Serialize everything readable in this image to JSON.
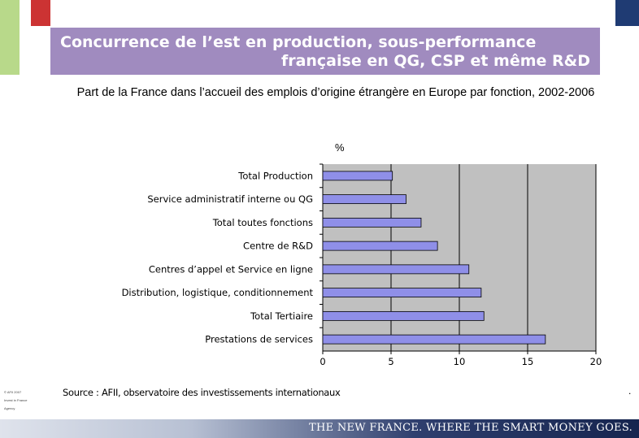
{
  "slide": {
    "title_line1": "Concurrence de l’est en production, sous-performance",
    "title_line2": "française en QG, CSP et même R&D",
    "subtitle": "Part de la France dans l’accueil des emplois d’origine étrangère en Europe par fonction, 2002-2006",
    "source": "Source : AFII, observatoire des investissements internationaux",
    "dot": ".",
    "footer": "THE NEW FRANCE. WHERE THE SMART MONEY GOES.",
    "notes_left": [
      "© AFII 2007",
      "Invest in France",
      "Agency"
    ]
  },
  "colors": {
    "title_bg": "#a08bbf",
    "bar_fill": "#8f8fe8",
    "plot_bg": "#c0c0c0",
    "accent_green": "#b8d98a",
    "accent_red": "#cc3333",
    "accent_navy": "#1f3b73"
  },
  "chart_data": {
    "type": "bar",
    "orientation": "horizontal",
    "unit_label": "%",
    "categories": [
      "Total Production",
      "Service administratif interne ou QG",
      "Total toutes fonctions",
      "Centre de R&D",
      "Centres d’appel et Service en ligne",
      "Distribution, logistique, conditionnement",
      "Total Tertiaire",
      "Prestations de services"
    ],
    "values": [
      5.1,
      6.1,
      7.2,
      8.4,
      10.7,
      11.6,
      11.8,
      16.3
    ],
    "xlim": [
      0,
      20
    ],
    "xticks": [
      0,
      5,
      10,
      15,
      20
    ],
    "grid": true,
    "legend": "none"
  }
}
